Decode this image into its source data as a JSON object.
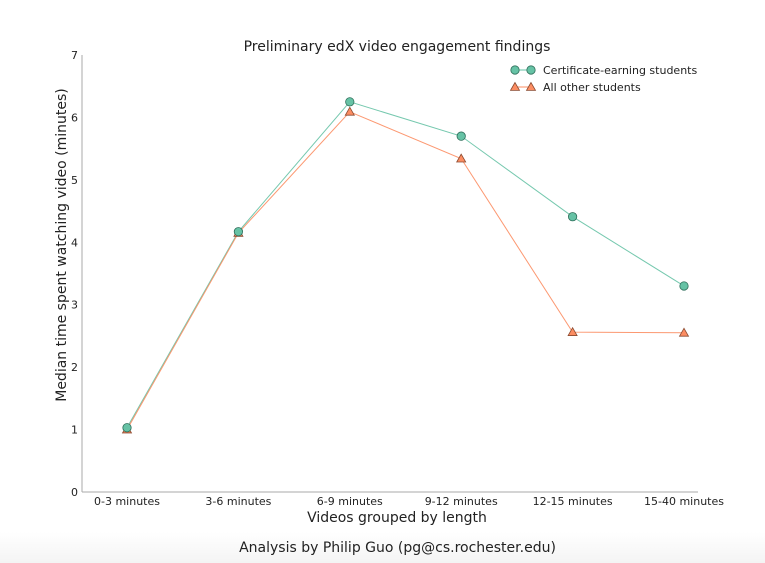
{
  "chart_data": {
    "type": "line",
    "title": "Preliminary edX video engagement findings",
    "xlabel": "Videos grouped by length",
    "ylabel": "Median time spent watching video (minutes)",
    "categories": [
      "0-3 minutes",
      "3-6 minutes",
      "6-9 minutes",
      "9-12 minutes",
      "12-15 minutes",
      "15-40 minutes"
    ],
    "ylim": [
      0,
      7
    ],
    "yticks": [
      0,
      1,
      2,
      3,
      4,
      5,
      6,
      7
    ],
    "grid": false,
    "legend_position": "upper right",
    "series": [
      {
        "name": "Certificate-earning students",
        "marker": "circle",
        "color": "#66c2a5",
        "edge": "#2e6e5a",
        "values": [
          1.03,
          4.17,
          6.25,
          5.7,
          4.41,
          3.3
        ]
      },
      {
        "name": "All other students",
        "marker": "triangle",
        "color": "#fc8d62",
        "edge": "#8a4a30",
        "values": [
          1.0,
          4.15,
          6.09,
          5.34,
          2.56,
          2.55
        ]
      }
    ]
  },
  "footer": {
    "credit": "Analysis by Philip Guo (pg@cs.rochester.edu)"
  }
}
